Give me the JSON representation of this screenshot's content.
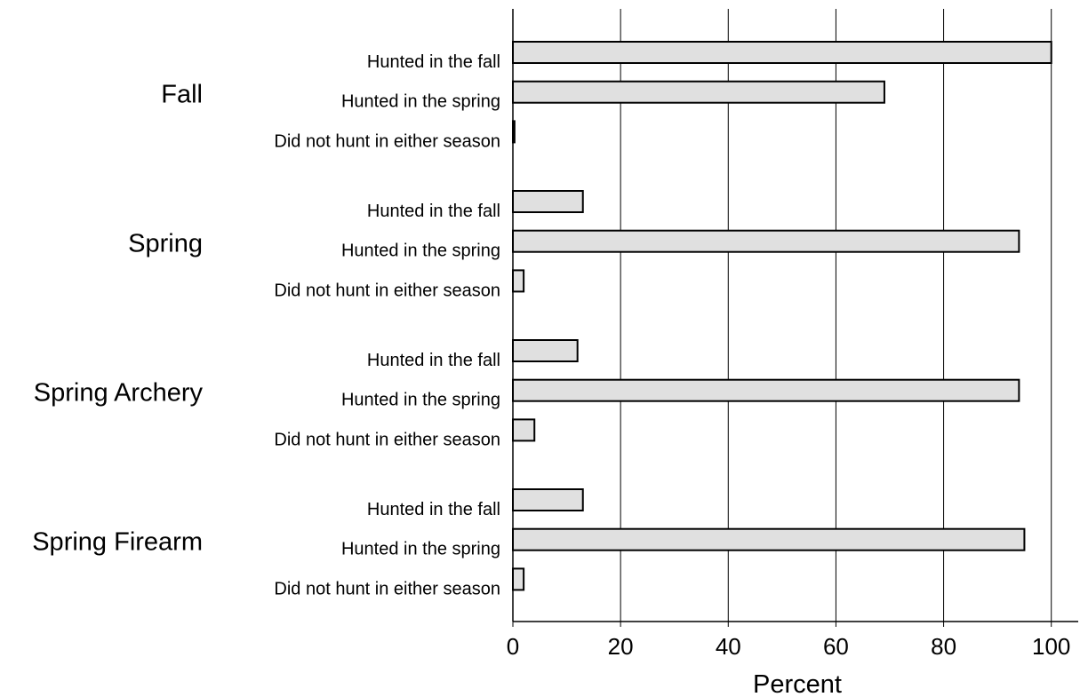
{
  "chart_data": {
    "type": "bar",
    "orientation": "horizontal",
    "categories": [
      "Fall",
      "Spring",
      "Spring Archery",
      "Spring Firearm"
    ],
    "series": [
      {
        "name": "Hunted in the fall",
        "color": "#e0e0e0",
        "values": [
          100,
          13,
          12,
          13
        ]
      },
      {
        "name": "Hunted in the spring",
        "color": "#e0e0e0",
        "values": [
          69,
          94,
          94,
          95
        ]
      },
      {
        "name": "Did not hunt in either season",
        "color": "#e0e0e0",
        "values": [
          0.3,
          2,
          4,
          2
        ]
      }
    ],
    "xlabel": "Percent",
    "xlim": [
      0,
      105
    ],
    "xticks": [
      0,
      20,
      40,
      60,
      80,
      100
    ],
    "grid": true
  }
}
